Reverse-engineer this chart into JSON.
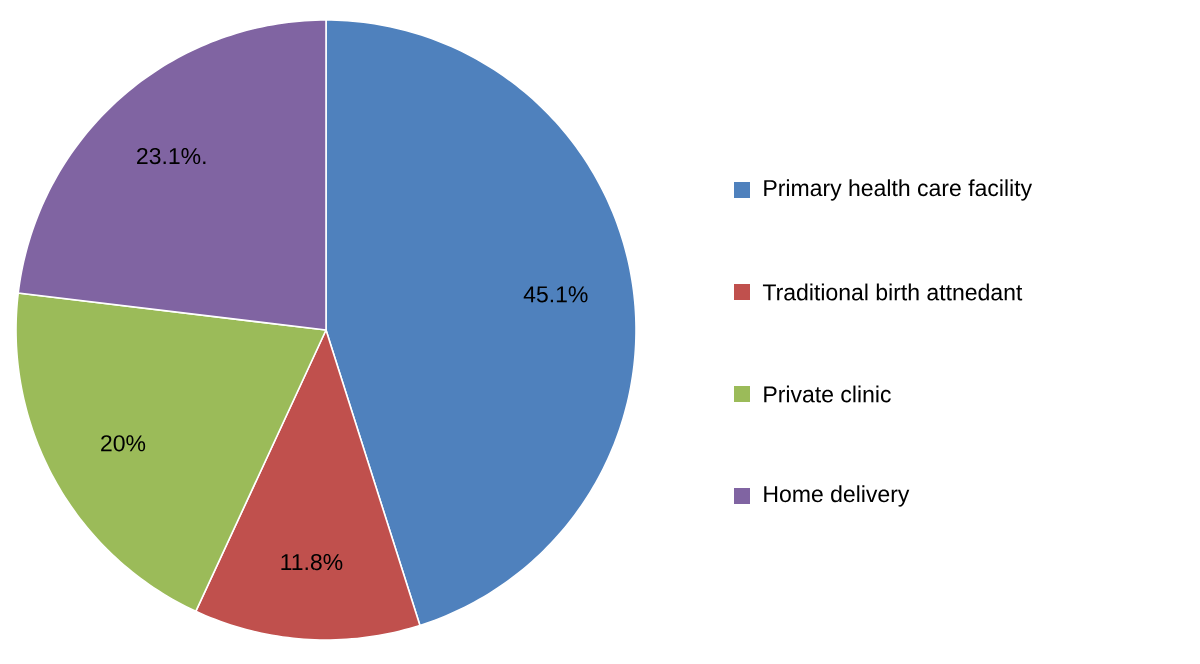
{
  "chart_data": {
    "type": "pie",
    "categories": [
      "Primary health care facility",
      "Traditional birth attnedant",
      "Private clinic",
      "Home delivery"
    ],
    "values": [
      45.1,
      11.8,
      20,
      23.1
    ],
    "value_labels": [
      "45.1%",
      "11.8%",
      "20%",
      "23.1%."
    ],
    "colors": [
      "#4f81bd",
      "#c0504d",
      "#9bbb59",
      "#8064a2"
    ],
    "legend": "right"
  }
}
